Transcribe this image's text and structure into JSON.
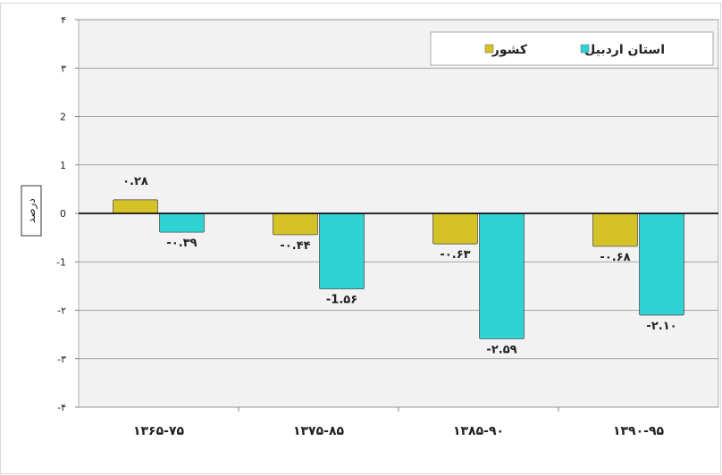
{
  "chart_data": {
    "type": "bar",
    "title": "",
    "xlabel": "",
    "ylabel": "درصد",
    "ylim": [
      -4,
      4
    ],
    "yticks": [
      {
        "value": 4,
        "label": "۴"
      },
      {
        "value": 3,
        "label": "۳"
      },
      {
        "value": 2,
        "label": "2"
      },
      {
        "value": 1,
        "label": "1"
      },
      {
        "value": 0,
        "label": "0"
      },
      {
        "value": -1,
        "label": "-1"
      },
      {
        "value": -2,
        "label": "-۲"
      },
      {
        "value": -3,
        "label": "-۳"
      },
      {
        "value": -4,
        "label": "-۴"
      }
    ],
    "grid": true,
    "legend_position": "top-right",
    "categories": [
      "۱۳۶۵-۷۵",
      "۱۳۷۵-۸۵",
      "۱۳۸۵-۹۰",
      "۱۳۹۰-۹۵"
    ],
    "series": [
      {
        "name": "کشور",
        "color": "#d4c227",
        "values": [
          0.28,
          -0.44,
          -0.63,
          -0.68
        ],
        "labels": [
          "۰.۲۸",
          "-۰.۴۴",
          "-۰.۶۳",
          "-۰.۶۸"
        ]
      },
      {
        "name": "استان اردبیل",
        "color": "#2ed3d6",
        "values": [
          -0.39,
          -1.56,
          -2.59,
          -2.1
        ],
        "labels": [
          "-۰.۳۹",
          "-1.۵۶",
          "-۲.۵۹",
          "-۲.۱۰"
        ]
      }
    ]
  }
}
